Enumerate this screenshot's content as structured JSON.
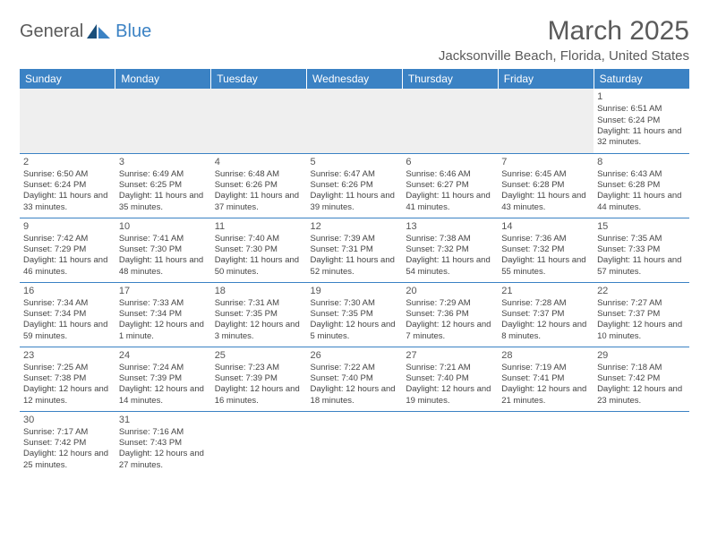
{
  "logo": {
    "text1": "General",
    "text2": "Blue"
  },
  "title": "March 2025",
  "location": "Jacksonville Beach, Florida, United States",
  "colors": {
    "header_bg": "#3b82c4",
    "header_text": "#ffffff",
    "blank_row_bg": "#efefef",
    "border": "#3b82c4",
    "logo_gray": "#5a5a5a",
    "logo_blue": "#3b82c4"
  },
  "weekdays": [
    "Sunday",
    "Monday",
    "Tuesday",
    "Wednesday",
    "Thursday",
    "Friday",
    "Saturday"
  ],
  "weeks": [
    [
      null,
      null,
      null,
      null,
      null,
      null,
      {
        "n": "1",
        "sr": "Sunrise: 6:51 AM",
        "ss": "Sunset: 6:24 PM",
        "dl": "Daylight: 11 hours and 32 minutes."
      }
    ],
    [
      {
        "n": "2",
        "sr": "Sunrise: 6:50 AM",
        "ss": "Sunset: 6:24 PM",
        "dl": "Daylight: 11 hours and 33 minutes."
      },
      {
        "n": "3",
        "sr": "Sunrise: 6:49 AM",
        "ss": "Sunset: 6:25 PM",
        "dl": "Daylight: 11 hours and 35 minutes."
      },
      {
        "n": "4",
        "sr": "Sunrise: 6:48 AM",
        "ss": "Sunset: 6:26 PM",
        "dl": "Daylight: 11 hours and 37 minutes."
      },
      {
        "n": "5",
        "sr": "Sunrise: 6:47 AM",
        "ss": "Sunset: 6:26 PM",
        "dl": "Daylight: 11 hours and 39 minutes."
      },
      {
        "n": "6",
        "sr": "Sunrise: 6:46 AM",
        "ss": "Sunset: 6:27 PM",
        "dl": "Daylight: 11 hours and 41 minutes."
      },
      {
        "n": "7",
        "sr": "Sunrise: 6:45 AM",
        "ss": "Sunset: 6:28 PM",
        "dl": "Daylight: 11 hours and 43 minutes."
      },
      {
        "n": "8",
        "sr": "Sunrise: 6:43 AM",
        "ss": "Sunset: 6:28 PM",
        "dl": "Daylight: 11 hours and 44 minutes."
      }
    ],
    [
      {
        "n": "9",
        "sr": "Sunrise: 7:42 AM",
        "ss": "Sunset: 7:29 PM",
        "dl": "Daylight: 11 hours and 46 minutes."
      },
      {
        "n": "10",
        "sr": "Sunrise: 7:41 AM",
        "ss": "Sunset: 7:30 PM",
        "dl": "Daylight: 11 hours and 48 minutes."
      },
      {
        "n": "11",
        "sr": "Sunrise: 7:40 AM",
        "ss": "Sunset: 7:30 PM",
        "dl": "Daylight: 11 hours and 50 minutes."
      },
      {
        "n": "12",
        "sr": "Sunrise: 7:39 AM",
        "ss": "Sunset: 7:31 PM",
        "dl": "Daylight: 11 hours and 52 minutes."
      },
      {
        "n": "13",
        "sr": "Sunrise: 7:38 AM",
        "ss": "Sunset: 7:32 PM",
        "dl": "Daylight: 11 hours and 54 minutes."
      },
      {
        "n": "14",
        "sr": "Sunrise: 7:36 AM",
        "ss": "Sunset: 7:32 PM",
        "dl": "Daylight: 11 hours and 55 minutes."
      },
      {
        "n": "15",
        "sr": "Sunrise: 7:35 AM",
        "ss": "Sunset: 7:33 PM",
        "dl": "Daylight: 11 hours and 57 minutes."
      }
    ],
    [
      {
        "n": "16",
        "sr": "Sunrise: 7:34 AM",
        "ss": "Sunset: 7:34 PM",
        "dl": "Daylight: 11 hours and 59 minutes."
      },
      {
        "n": "17",
        "sr": "Sunrise: 7:33 AM",
        "ss": "Sunset: 7:34 PM",
        "dl": "Daylight: 12 hours and 1 minute."
      },
      {
        "n": "18",
        "sr": "Sunrise: 7:31 AM",
        "ss": "Sunset: 7:35 PM",
        "dl": "Daylight: 12 hours and 3 minutes."
      },
      {
        "n": "19",
        "sr": "Sunrise: 7:30 AM",
        "ss": "Sunset: 7:35 PM",
        "dl": "Daylight: 12 hours and 5 minutes."
      },
      {
        "n": "20",
        "sr": "Sunrise: 7:29 AM",
        "ss": "Sunset: 7:36 PM",
        "dl": "Daylight: 12 hours and 7 minutes."
      },
      {
        "n": "21",
        "sr": "Sunrise: 7:28 AM",
        "ss": "Sunset: 7:37 PM",
        "dl": "Daylight: 12 hours and 8 minutes."
      },
      {
        "n": "22",
        "sr": "Sunrise: 7:27 AM",
        "ss": "Sunset: 7:37 PM",
        "dl": "Daylight: 12 hours and 10 minutes."
      }
    ],
    [
      {
        "n": "23",
        "sr": "Sunrise: 7:25 AM",
        "ss": "Sunset: 7:38 PM",
        "dl": "Daylight: 12 hours and 12 minutes."
      },
      {
        "n": "24",
        "sr": "Sunrise: 7:24 AM",
        "ss": "Sunset: 7:39 PM",
        "dl": "Daylight: 12 hours and 14 minutes."
      },
      {
        "n": "25",
        "sr": "Sunrise: 7:23 AM",
        "ss": "Sunset: 7:39 PM",
        "dl": "Daylight: 12 hours and 16 minutes."
      },
      {
        "n": "26",
        "sr": "Sunrise: 7:22 AM",
        "ss": "Sunset: 7:40 PM",
        "dl": "Daylight: 12 hours and 18 minutes."
      },
      {
        "n": "27",
        "sr": "Sunrise: 7:21 AM",
        "ss": "Sunset: 7:40 PM",
        "dl": "Daylight: 12 hours and 19 minutes."
      },
      {
        "n": "28",
        "sr": "Sunrise: 7:19 AM",
        "ss": "Sunset: 7:41 PM",
        "dl": "Daylight: 12 hours and 21 minutes."
      },
      {
        "n": "29",
        "sr": "Sunrise: 7:18 AM",
        "ss": "Sunset: 7:42 PM",
        "dl": "Daylight: 12 hours and 23 minutes."
      }
    ],
    [
      {
        "n": "30",
        "sr": "Sunrise: 7:17 AM",
        "ss": "Sunset: 7:42 PM",
        "dl": "Daylight: 12 hours and 25 minutes."
      },
      {
        "n": "31",
        "sr": "Sunrise: 7:16 AM",
        "ss": "Sunset: 7:43 PM",
        "dl": "Daylight: 12 hours and 27 minutes."
      },
      null,
      null,
      null,
      null,
      null
    ]
  ]
}
